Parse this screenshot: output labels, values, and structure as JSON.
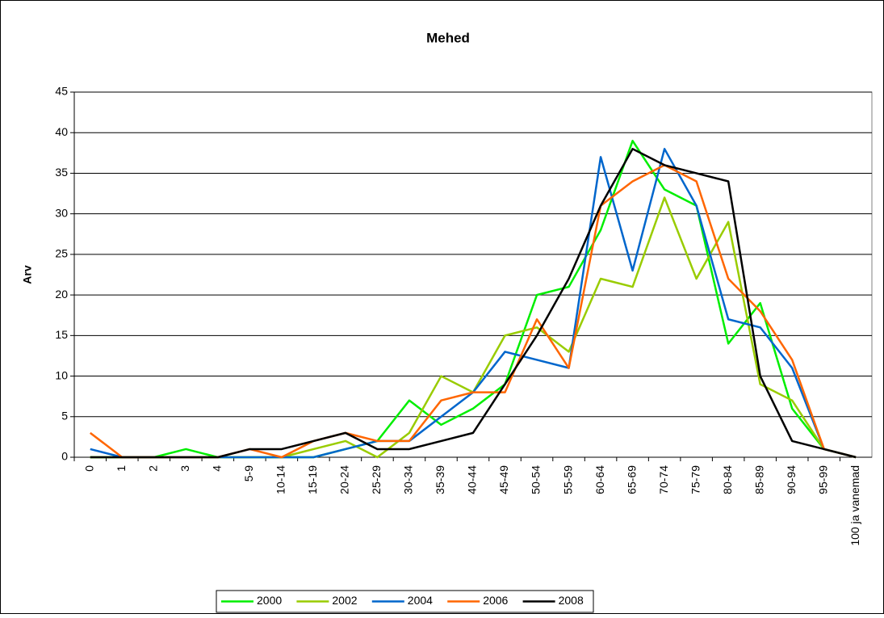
{
  "chart_data": {
    "type": "line",
    "title": "Mehed",
    "y_label": "Arv",
    "categories": [
      "0",
      "1",
      "2",
      "3",
      "4",
      "5-9",
      "10-14",
      "15-19",
      "20-24",
      "25-29",
      "30-34",
      "35-39",
      "40-44",
      "45-49",
      "50-54",
      "55-59",
      "60-64",
      "65-69",
      "70-74",
      "75-79",
      "80-84",
      "85-89",
      "90-94",
      "95-99",
      "100 ja vanemad"
    ],
    "series": [
      {
        "name": "2000",
        "color": "#00ee00",
        "values": [
          0,
          0,
          0,
          1,
          0,
          0,
          0,
          0,
          1,
          2,
          7,
          4,
          6,
          9,
          20,
          21,
          28,
          39,
          33,
          31,
          14,
          19,
          6,
          1,
          0
        ]
      },
      {
        "name": "2002",
        "color": "#99cc00",
        "values": [
          0,
          0,
          0,
          0,
          0,
          0,
          0,
          1,
          2,
          0,
          3,
          10,
          8,
          15,
          16,
          13,
          22,
          21,
          32,
          22,
          29,
          9,
          7,
          1,
          0
        ]
      },
      {
        "name": "2004",
        "color": "#0066cc",
        "values": [
          1,
          0,
          0,
          0,
          0,
          0,
          0,
          0,
          1,
          2,
          2,
          5,
          8,
          13,
          12,
          11,
          37,
          23,
          38,
          31,
          17,
          16,
          11,
          1,
          0
        ]
      },
      {
        "name": "2006",
        "color": "#ff6600",
        "values": [
          3,
          0,
          0,
          0,
          0,
          1,
          0,
          2,
          3,
          2,
          2,
          7,
          8,
          8,
          17,
          11,
          31,
          34,
          36,
          34,
          22,
          18,
          12,
          1,
          0
        ]
      },
      {
        "name": "2008",
        "color": "#000000",
        "values": [
          0,
          0,
          0,
          0,
          0,
          1,
          1,
          2,
          3,
          1,
          1,
          2,
          3,
          9,
          15,
          22,
          31,
          38,
          36,
          35,
          34,
          10,
          2,
          1,
          0
        ]
      }
    ],
    "ylim": [
      0,
      45
    ],
    "yticks": [
      0,
      5,
      10,
      15,
      20,
      25,
      30,
      35,
      40,
      45
    ],
    "grid": true,
    "legend": "bottom"
  }
}
